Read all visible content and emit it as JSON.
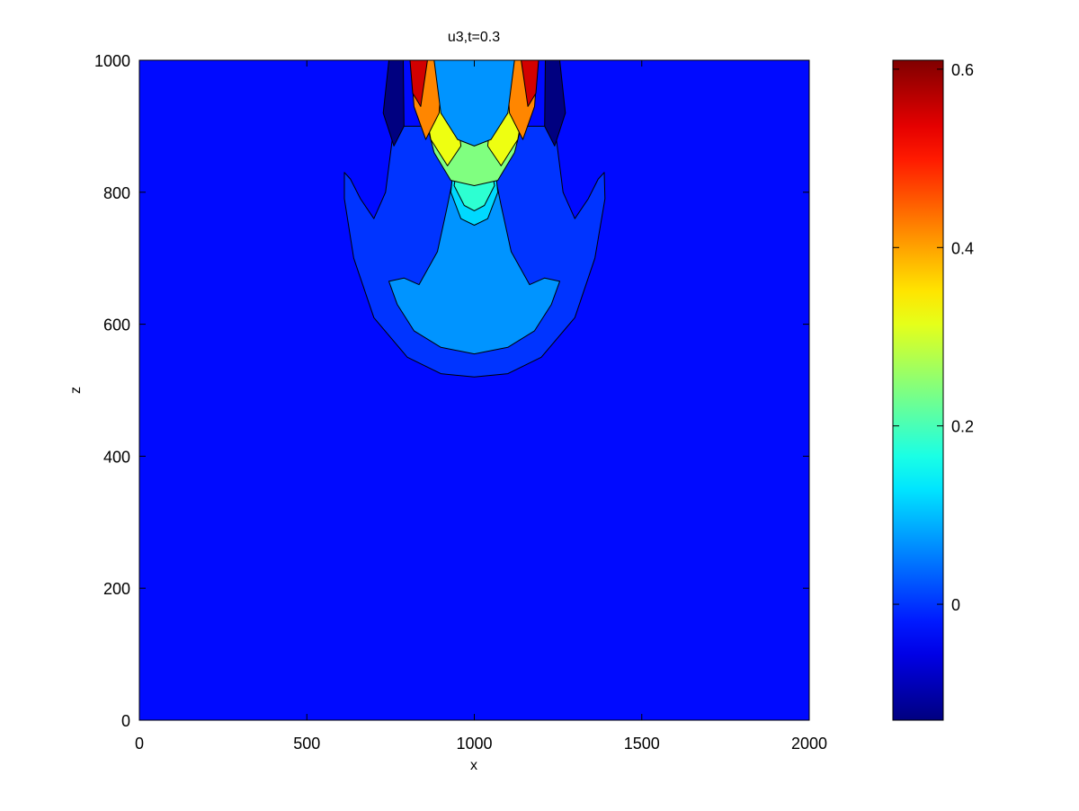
{
  "chart_data": {
    "type": "contour",
    "title": "u3,t=0.3",
    "xlabel": "x",
    "ylabel": "z",
    "xlim": [
      0,
      2000
    ],
    "ylim": [
      0,
      1000
    ],
    "x_ticks": [
      0,
      500,
      1000,
      1500,
      2000
    ],
    "y_ticks": [
      0,
      200,
      400,
      600,
      800,
      1000
    ],
    "colormap": "jet",
    "colorbar": {
      "range": [
        -0.13,
        0.61
      ],
      "ticks": [
        0,
        0.2,
        0.4,
        0.6
      ],
      "tick_labels": [
        "0",
        "0.2",
        "0.4",
        "0.6"
      ]
    },
    "background_value": -0.03,
    "field_description_points": [
      {
        "x": 1000,
        "z": 520,
        "value": 0.0
      },
      {
        "x": 1000,
        "z": 560,
        "value": 0.07
      },
      {
        "x": 1000,
        "z": 760,
        "value": 0.18
      },
      {
        "x": 1000,
        "z": 800,
        "value": 0.24
      },
      {
        "x": 850,
        "z": 900,
        "value": 0.45
      },
      {
        "x": 1170,
        "z": 900,
        "value": 0.45
      },
      {
        "x": 830,
        "z": 980,
        "value": 0.61
      },
      {
        "x": 1180,
        "z": 980,
        "value": 0.61
      },
      {
        "x": 760,
        "z": 920,
        "value": -0.13
      },
      {
        "x": 1250,
        "z": 920,
        "value": -0.13
      }
    ]
  }
}
